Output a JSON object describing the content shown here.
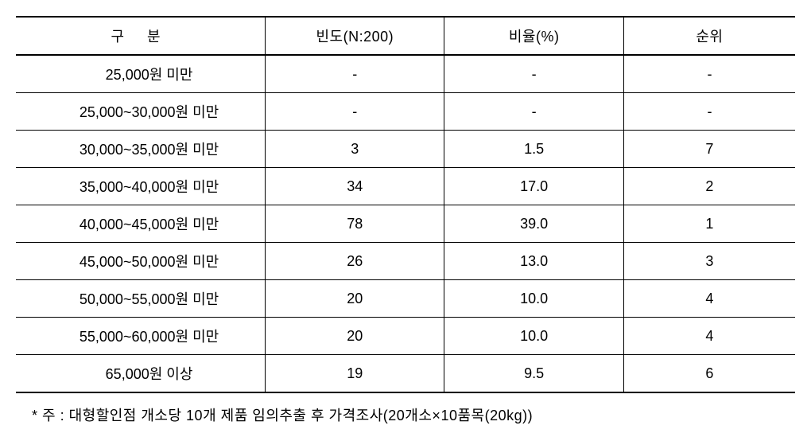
{
  "table": {
    "type": "table",
    "columns": [
      {
        "key": "category",
        "label": "구     분",
        "width": "32%",
        "align": "center"
      },
      {
        "key": "frequency",
        "label": "빈도(N:200)",
        "width": "23%",
        "align": "center"
      },
      {
        "key": "ratio",
        "label": "비율(%)",
        "width": "23%",
        "align": "center"
      },
      {
        "key": "rank",
        "label": "순위",
        "width": "22%",
        "align": "center"
      }
    ],
    "rows": [
      {
        "category": "25,000원 미만",
        "frequency": "-",
        "ratio": "-",
        "rank": "-"
      },
      {
        "category": "25,000~30,000원 미만",
        "frequency": "-",
        "ratio": "-",
        "rank": "-"
      },
      {
        "category": "30,000~35,000원 미만",
        "frequency": "3",
        "ratio": "1.5",
        "rank": "7"
      },
      {
        "category": "35,000~40,000원 미만",
        "frequency": "34",
        "ratio": "17.0",
        "rank": "2"
      },
      {
        "category": "40,000~45,000원 미만",
        "frequency": "78",
        "ratio": "39.0",
        "rank": "1"
      },
      {
        "category": "45,000~50,000원 미만",
        "frequency": "26",
        "ratio": "13.0",
        "rank": "3"
      },
      {
        "category": "50,000~55,000원 미만",
        "frequency": "20",
        "ratio": "10.0",
        "rank": "4"
      },
      {
        "category": "55,000~60,000원 미만",
        "frequency": "20",
        "ratio": "10.0",
        "rank": "4"
      },
      {
        "category": "65,000원 이상",
        "frequency": "19",
        "ratio": "9.5",
        "rank": "6"
      }
    ],
    "border_color": "#000000",
    "background_color": "#ffffff",
    "text_color": "#000000",
    "header_fontsize": 18,
    "cell_fontsize": 18,
    "border_top_width": 2,
    "border_bottom_width": 2,
    "header_border_bottom_width": 2,
    "row_border_width": 1
  },
  "footnote": {
    "text": "* 주 : 대형할인점 개소당 10개 제품 임의추출 후 가격조사(20개소×10품목(20kg))",
    "fontsize": 18,
    "color": "#000000"
  }
}
